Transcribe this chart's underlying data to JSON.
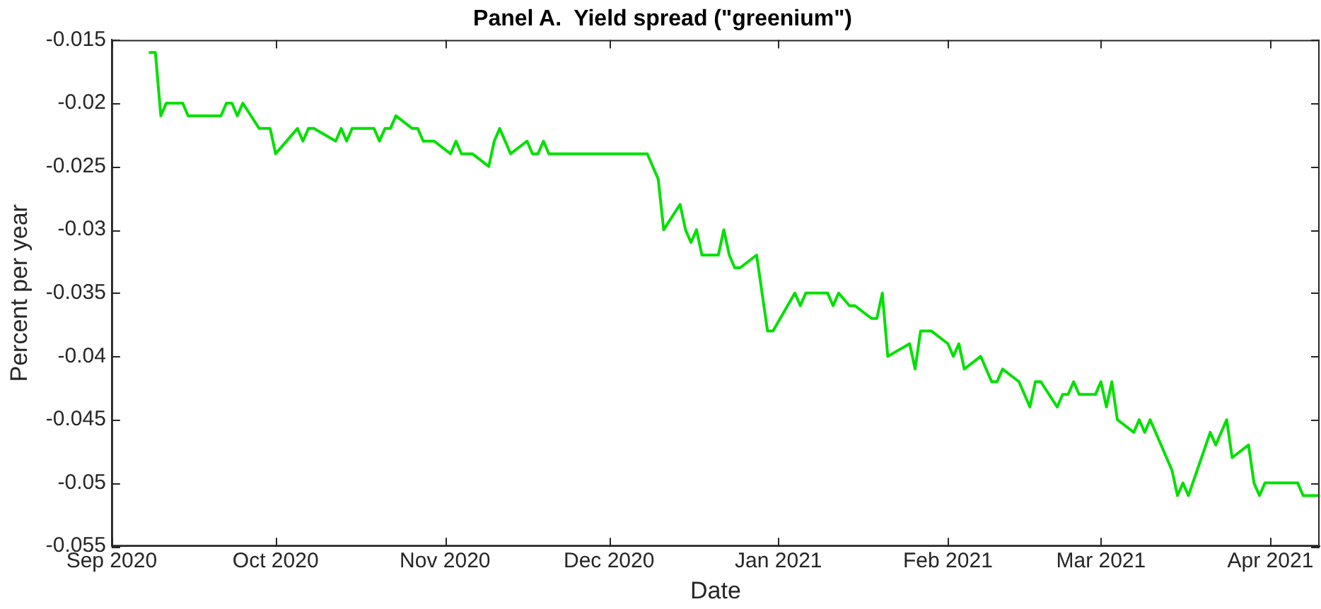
{
  "chart_data": {
    "type": "line",
    "title": "Panel A.  Yield spread (\"greenium\")",
    "xlabel": "Date",
    "ylabel": "Percent per year",
    "x": [
      "2020-09-08",
      "2020-09-09",
      "2020-09-10",
      "2020-09-11",
      "2020-09-14",
      "2020-09-15",
      "2020-09-21",
      "2020-09-22",
      "2020-09-23",
      "2020-09-24",
      "2020-09-25",
      "2020-09-28",
      "2020-09-30",
      "2020-10-01",
      "2020-10-05",
      "2020-10-06",
      "2020-10-07",
      "2020-10-08",
      "2020-10-12",
      "2020-10-13",
      "2020-10-14",
      "2020-10-15",
      "2020-10-19",
      "2020-10-20",
      "2020-10-21",
      "2020-10-22",
      "2020-10-23",
      "2020-10-26",
      "2020-10-27",
      "2020-10-28",
      "2020-10-30",
      "2020-11-02",
      "2020-11-03",
      "2020-11-04",
      "2020-11-06",
      "2020-11-09",
      "2020-11-10",
      "2020-11-11",
      "2020-11-13",
      "2020-11-16",
      "2020-11-17",
      "2020-11-18",
      "2020-11-19",
      "2020-11-20",
      "2020-12-08",
      "2020-12-10",
      "2020-12-11",
      "2020-12-14",
      "2020-12-15",
      "2020-12-16",
      "2020-12-17",
      "2020-12-18",
      "2020-12-21",
      "2020-12-22",
      "2020-12-23",
      "2020-12-24",
      "2020-12-25",
      "2020-12-28",
      "2020-12-30",
      "2020-12-31",
      "2021-01-04",
      "2021-01-05",
      "2021-01-06",
      "2021-01-10",
      "2021-01-11",
      "2021-01-12",
      "2021-01-14",
      "2021-01-15",
      "2021-01-18",
      "2021-01-19",
      "2021-01-20",
      "2021-01-21",
      "2021-01-25",
      "2021-01-26",
      "2021-01-27",
      "2021-01-29",
      "2021-02-01",
      "2021-02-02",
      "2021-02-03",
      "2021-02-04",
      "2021-02-07",
      "2021-02-09",
      "2021-02-10",
      "2021-02-11",
      "2021-02-14",
      "2021-02-16",
      "2021-02-17",
      "2021-02-18",
      "2021-02-21",
      "2021-02-22",
      "2021-02-23",
      "2021-02-24",
      "2021-02-25",
      "2021-02-28",
      "2021-03-01",
      "2021-03-02",
      "2021-03-03",
      "2021-03-04",
      "2021-03-07",
      "2021-03-08",
      "2021-03-09",
      "2021-03-10",
      "2021-03-14",
      "2021-03-15",
      "2021-03-16",
      "2021-03-17",
      "2021-03-21",
      "2021-03-22",
      "2021-03-24",
      "2021-03-25",
      "2021-03-28",
      "2021-03-29",
      "2021-03-30",
      "2021-03-31",
      "2021-04-06",
      "2021-04-07",
      "2021-04-10"
    ],
    "series": [
      {
        "color": "#00e000",
        "values": [
          -0.016,
          -0.016,
          -0.021,
          -0.02,
          -0.02,
          -0.021,
          -0.021,
          -0.02,
          -0.02,
          -0.021,
          -0.02,
          -0.022,
          -0.022,
          -0.024,
          -0.022,
          -0.023,
          -0.022,
          -0.022,
          -0.023,
          -0.022,
          -0.023,
          -0.022,
          -0.022,
          -0.023,
          -0.022,
          -0.022,
          -0.021,
          -0.022,
          -0.022,
          -0.023,
          -0.023,
          -0.024,
          -0.023,
          -0.024,
          -0.024,
          -0.025,
          -0.023,
          -0.022,
          -0.024,
          -0.023,
          -0.024,
          -0.024,
          -0.023,
          -0.024,
          -0.024,
          -0.026,
          -0.03,
          -0.028,
          -0.03,
          -0.031,
          -0.03,
          -0.032,
          -0.032,
          -0.03,
          -0.032,
          -0.033,
          -0.033,
          -0.032,
          -0.038,
          -0.038,
          -0.035,
          -0.036,
          -0.035,
          -0.035,
          -0.036,
          -0.035,
          -0.036,
          -0.036,
          -0.037,
          -0.037,
          -0.035,
          -0.04,
          -0.039,
          -0.041,
          -0.038,
          -0.038,
          -0.039,
          -0.04,
          -0.039,
          -0.041,
          -0.04,
          -0.042,
          -0.042,
          -0.041,
          -0.042,
          -0.044,
          -0.042,
          -0.042,
          -0.044,
          -0.043,
          -0.043,
          -0.042,
          -0.043,
          -0.043,
          -0.042,
          -0.044,
          -0.042,
          -0.045,
          -0.046,
          -0.045,
          -0.046,
          -0.045,
          -0.049,
          -0.051,
          -0.05,
          -0.051,
          -0.046,
          -0.047,
          -0.045,
          -0.048,
          -0.047,
          -0.05,
          -0.051,
          -0.05,
          -0.05,
          -0.051,
          -0.051
        ]
      }
    ],
    "xlim": [
      "2020-09-01",
      "2021-04-10"
    ],
    "xticks": [
      {
        "value": "2020-09-01",
        "label": "Sep 2020"
      },
      {
        "value": "2020-10-01",
        "label": "Oct 2020"
      },
      {
        "value": "2020-11-01",
        "label": "Nov 2020"
      },
      {
        "value": "2020-12-01",
        "label": "Dec 2020"
      },
      {
        "value": "2021-01-01",
        "label": "Jan 2021"
      },
      {
        "value": "2021-02-01",
        "label": "Feb 2021"
      },
      {
        "value": "2021-03-01",
        "label": "Mar 2021"
      },
      {
        "value": "2021-04-01",
        "label": "Apr 2021"
      }
    ],
    "ylim": [
      -0.055,
      -0.015
    ],
    "yticks": [
      -0.055,
      -0.05,
      -0.045,
      -0.04,
      -0.035,
      -0.03,
      -0.025,
      -0.02,
      -0.015
    ],
    "grid": false,
    "legend": false,
    "marker": "none",
    "line_style": "solid"
  }
}
